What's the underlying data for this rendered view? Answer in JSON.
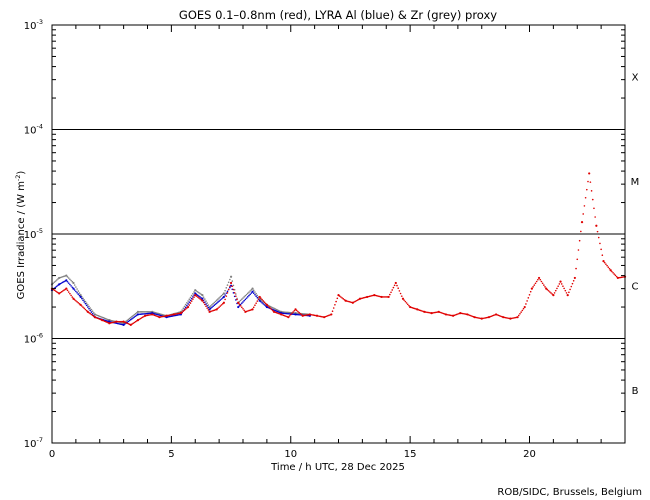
{
  "chart_data": {
    "type": "scatter",
    "title": "GOES 0.1–0.8nm (red), LYRA Al (blue) & Zr (grey) proxy",
    "xlabel": "Time / h UTC, 28 Dec 2025",
    "ylabel": "GOES Irradiance / (W m^-2)",
    "ylabel_main": "GOES Irradiance / (W m",
    "ylabel_sup": "-2",
    "ylabel_end": ")",
    "xlim": [
      0,
      24
    ],
    "ylim": [
      1e-07,
      0.001
    ],
    "yscale": "log",
    "grid": false,
    "x_ticks": [
      {
        "value": 0,
        "label": "0"
      },
      {
        "value": 5,
        "label": "5"
      },
      {
        "value": 10,
        "label": "10"
      },
      {
        "value": 15,
        "label": "15"
      },
      {
        "value": 20,
        "label": "20"
      }
    ],
    "y_ticks": [
      {
        "value": 0.001,
        "base": "10",
        "exp": "-3"
      },
      {
        "value": 0.0001,
        "base": "10",
        "exp": "-4"
      },
      {
        "value": 1e-05,
        "base": "10",
        "exp": "-5"
      },
      {
        "value": 1e-06,
        "base": "10",
        "exp": "-6"
      },
      {
        "value": 1e-07,
        "base": "10",
        "exp": "-7"
      }
    ],
    "thresholds": [
      0.0001,
      1e-05,
      1e-06
    ],
    "flare_classes": [
      {
        "label": "X",
        "value": 0.00032
      },
      {
        "label": "M",
        "value": 3.2e-05
      },
      {
        "label": "C",
        "value": 3.2e-06
      },
      {
        "label": "B",
        "value": 3.2e-07
      }
    ],
    "series": [
      {
        "name": "GOES",
        "color": "#e00000",
        "x": [
          0.0,
          0.3,
          0.6,
          0.9,
          1.2,
          1.5,
          1.8,
          2.1,
          2.4,
          2.7,
          3.0,
          3.3,
          3.6,
          3.9,
          4.2,
          4.5,
          4.8,
          5.1,
          5.4,
          5.7,
          6.0,
          6.3,
          6.6,
          6.9,
          7.2,
          7.5,
          7.8,
          8.1,
          8.4,
          8.7,
          9.0,
          9.3,
          9.6,
          9.9,
          10.2,
          10.5,
          10.8,
          11.1,
          11.4,
          11.7,
          12.0,
          12.3,
          12.6,
          12.9,
          13.2,
          13.5,
          13.8,
          14.1,
          14.4,
          14.7,
          15.0,
          15.3,
          15.6,
          15.9,
          16.2,
          16.5,
          16.8,
          17.1,
          17.4,
          17.7,
          18.0,
          18.3,
          18.6,
          18.9,
          19.2,
          19.5,
          19.8,
          20.1,
          20.4,
          20.7,
          21.0,
          21.3,
          21.6,
          21.9,
          22.2,
          22.5,
          22.8,
          23.1,
          23.4,
          23.7,
          24.0
        ],
        "y": [
          3e-06,
          2.7e-06,
          3e-06,
          2.4e-06,
          2.1e-06,
          1.8e-06,
          1.6e-06,
          1.5e-06,
          1.4e-06,
          1.45e-06,
          1.45e-06,
          1.35e-06,
          1.5e-06,
          1.65e-06,
          1.7e-06,
          1.6e-06,
          1.65e-06,
          1.7e-06,
          1.75e-06,
          2e-06,
          2.6e-06,
          2.3e-06,
          1.8e-06,
          1.9e-06,
          2.2e-06,
          3.4e-06,
          2.2e-06,
          1.8e-06,
          1.9e-06,
          2.5e-06,
          2.1e-06,
          1.8e-06,
          1.7e-06,
          1.6e-06,
          1.9e-06,
          1.65e-06,
          1.7e-06,
          1.65e-06,
          1.6e-06,
          1.7e-06,
          2.6e-06,
          2.3e-06,
          2.2e-06,
          2.4e-06,
          2.5e-06,
          2.6e-06,
          2.5e-06,
          2.5e-06,
          3.4e-06,
          2.4e-06,
          2e-06,
          1.9e-06,
          1.8e-06,
          1.75e-06,
          1.8e-06,
          1.7e-06,
          1.65e-06,
          1.75e-06,
          1.7e-06,
          1.6e-06,
          1.55e-06,
          1.6e-06,
          1.7e-06,
          1.6e-06,
          1.55e-06,
          1.6e-06,
          2e-06,
          3e-06,
          3.8e-06,
          3e-06,
          2.6e-06,
          3.5e-06,
          2.6e-06,
          3.8e-06,
          1.3e-05,
          3.8e-05,
          1.2e-05,
          5.5e-06,
          4.5e-06,
          3.8e-06,
          3.9e-06
        ]
      },
      {
        "name": "LYRA Al",
        "color": "#0000cc",
        "x": [
          0.0,
          0.3,
          0.6,
          0.9,
          1.2,
          1.8,
          2.4,
          3.0,
          3.6,
          4.2,
          4.8,
          5.4,
          6.0,
          6.3,
          6.6,
          7.2,
          7.5,
          7.8,
          8.4,
          8.7,
          9.0,
          9.6,
          10.2,
          10.8
        ],
        "y": [
          2.9e-06,
          3.3e-06,
          3.6e-06,
          3e-06,
          2.5e-06,
          1.6e-06,
          1.45e-06,
          1.35e-06,
          1.7e-06,
          1.75e-06,
          1.6e-06,
          1.7e-06,
          2.7e-06,
          2.4e-06,
          1.9e-06,
          2.5e-06,
          3.2e-06,
          2e-06,
          2.8e-06,
          2.3e-06,
          2e-06,
          1.75e-06,
          1.7e-06,
          1.65e-06
        ]
      },
      {
        "name": "LYRA Zr",
        "color": "#808080",
        "x": [
          0.0,
          0.3,
          0.6,
          0.9,
          1.2,
          1.8,
          2.4,
          3.0,
          3.6,
          4.2,
          4.8,
          5.4,
          6.0,
          6.3,
          6.6,
          7.2,
          7.5,
          7.8,
          8.4,
          8.7,
          9.0,
          9.6,
          10.2,
          10.8
        ],
        "y": [
          3.3e-06,
          3.8e-06,
          4e-06,
          3.4e-06,
          2.6e-06,
          1.7e-06,
          1.5e-06,
          1.4e-06,
          1.8e-06,
          1.8e-06,
          1.65e-06,
          1.8e-06,
          2.9e-06,
          2.6e-06,
          2e-06,
          2.7e-06,
          3.9e-06,
          2.2e-06,
          3e-06,
          2.4e-06,
          2.1e-06,
          1.8e-06,
          1.75e-06,
          1.7e-06
        ]
      }
    ]
  },
  "credit": "ROB/SIDC, Brussels, Belgium"
}
